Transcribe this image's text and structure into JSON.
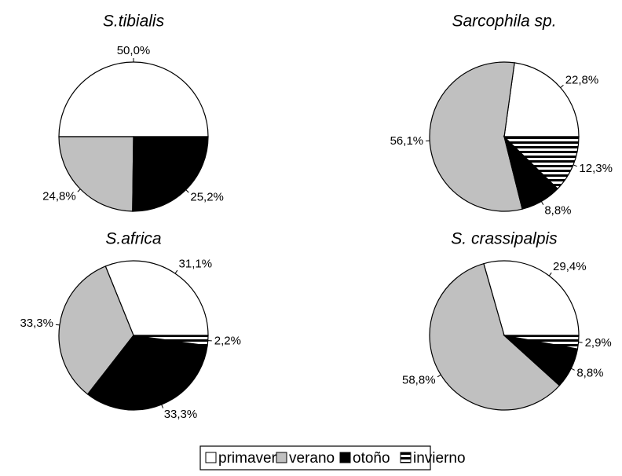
{
  "chart_data": [
    {
      "type": "pie",
      "title": "S.tibialis",
      "categories": [
        "primavera",
        "verano",
        "otoño"
      ],
      "values": [
        50.0,
        24.8,
        25.2
      ],
      "value_labels": [
        "50,0%",
        "24,8%",
        "25,2%"
      ]
    },
    {
      "type": "pie",
      "title": "Sarcophila sp.",
      "categories": [
        "primavera",
        "verano",
        "otoño",
        "invierno"
      ],
      "values": [
        22.8,
        56.1,
        8.8,
        12.3
      ],
      "value_labels": [
        "22,8%",
        "56,1%",
        "8,8%",
        "12,3%"
      ]
    },
    {
      "type": "pie",
      "title": "S.africa",
      "categories": [
        "primavera",
        "verano",
        "otoño",
        "invierno"
      ],
      "values": [
        31.1,
        33.3,
        33.3,
        2.2
      ],
      "value_labels": [
        "31,1%",
        "33,3%",
        "33,3%",
        "2,2%"
      ]
    },
    {
      "type": "pie",
      "title": "S. crassipalpis",
      "categories": [
        "primavera",
        "verano",
        "otoño",
        "invierno"
      ],
      "values": [
        29.4,
        58.8,
        8.8,
        2.9
      ],
      "value_labels": [
        "29,4%",
        "58,8%",
        "8,8%",
        "2,9%"
      ]
    }
  ],
  "legend": {
    "entries": [
      "primavera",
      "verano",
      "otoño",
      "invierno"
    ],
    "colors": [
      "#ffffff",
      "#c0c0c0",
      "#000000",
      "horizontal-stripes"
    ]
  }
}
